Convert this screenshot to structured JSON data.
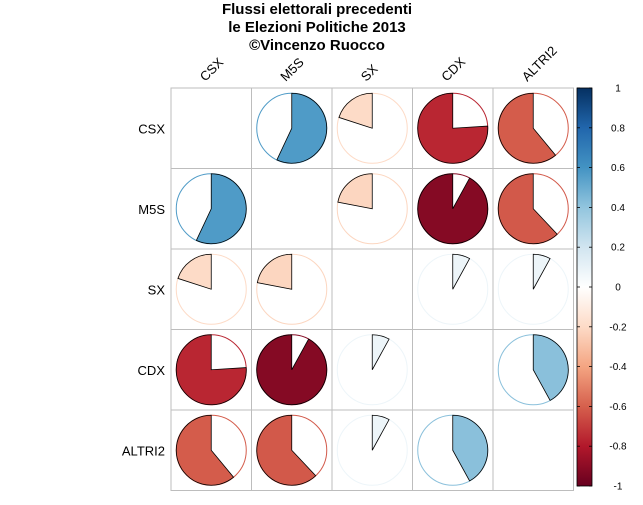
{
  "chart_data": {
    "type": "correlation-pie-matrix",
    "title": [
      "Flussi elettorali precedenti",
      "le Elezioni Politiche 2013",
      "©Vincenzo Ruocco"
    ],
    "rows": [
      "CSX",
      "M5S",
      "SX",
      "CDX",
      "ALTRI2"
    ],
    "columns": [
      "CSX",
      "M5S",
      "SX",
      "CDX",
      "ALTRI2"
    ],
    "matrix": [
      [
        null,
        0.57,
        -0.2,
        -0.76,
        -0.61
      ],
      [
        0.57,
        null,
        -0.22,
        -0.92,
        -0.62
      ],
      [
        -0.2,
        -0.22,
        null,
        0.08,
        0.08
      ],
      [
        -0.76,
        -0.92,
        0.08,
        null,
        0.42
      ],
      [
        -0.61,
        -0.62,
        0.08,
        0.42,
        null
      ]
    ],
    "colorbar": {
      "range": [
        -1,
        1
      ],
      "ticks": [
        1,
        0.8,
        0.6,
        0.4,
        0.2,
        0,
        -0.2,
        -0.4,
        -0.6,
        -0.8,
        -1
      ],
      "tick_labels": [
        "1",
        "0.8",
        "0.6",
        "0.4",
        "0.2",
        "0",
        "-0.2",
        "-0.4",
        "-0.6",
        "-0.8",
        "-1"
      ],
      "colors": [
        "#67001F",
        "#B2182B",
        "#D6604D",
        "#F4A582",
        "#FDDBC7",
        "#FFFFFF",
        "#D1E5F0",
        "#92C5DE",
        "#4393C3",
        "#2166AC",
        "#053061"
      ]
    },
    "grid": true
  }
}
